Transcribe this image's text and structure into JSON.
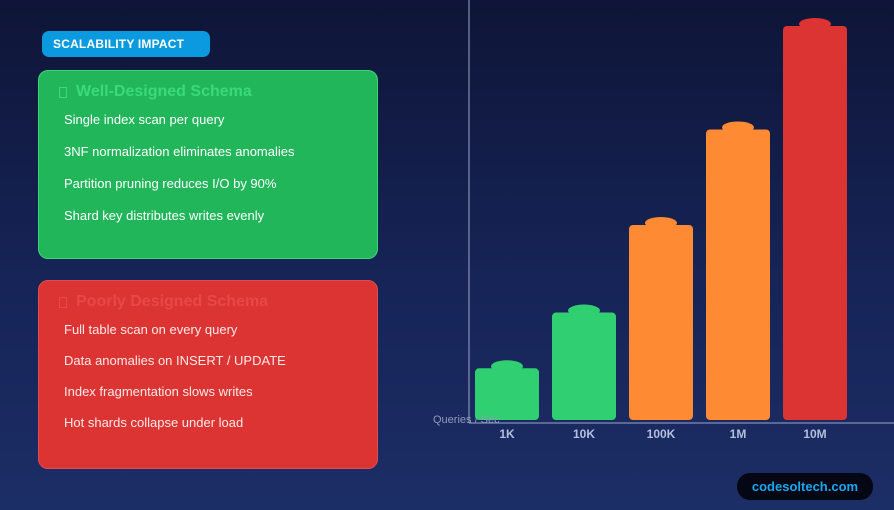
{
  "badge": "SCALABILITY IMPACT",
  "good_card": {
    "title": "Well-Designed Schema",
    "icon": "check-icon",
    "items": [
      "Single index scan per query",
      "3NF normalization eliminates anomalies",
      "Partition pruning reduces I/O by 90%",
      "Shard key distributes writes evenly"
    ]
  },
  "bad_card": {
    "title": "Poorly Designed Schema",
    "icon": "cross-icon",
    "items": [
      "Full table scan on every query",
      "Data anomalies on INSERT / UPDATE",
      "Index fragmentation slows writes",
      "Hot shards collapse under load"
    ]
  },
  "chart_data": {
    "type": "bar",
    "title": "",
    "xlabel": "Queries / Sec",
    "ylabel": "",
    "categories": [
      "1K",
      "10K",
      "100K",
      "1M",
      "10M"
    ],
    "values": [
      14,
      28,
      50,
      74,
      100
    ],
    "ylim": [
      0,
      100
    ],
    "grid": false,
    "legend": "none",
    "colors": [
      "#2fcf72",
      "#2fcf72",
      "#fe8a33",
      "#fe8a33",
      "#dc3333"
    ]
  },
  "brand": "codesoltech.com",
  "colors": {
    "accent": "#0b9ae0",
    "good": "#21b65a",
    "bad": "#dc3333",
    "warn": "#fe8a33"
  }
}
